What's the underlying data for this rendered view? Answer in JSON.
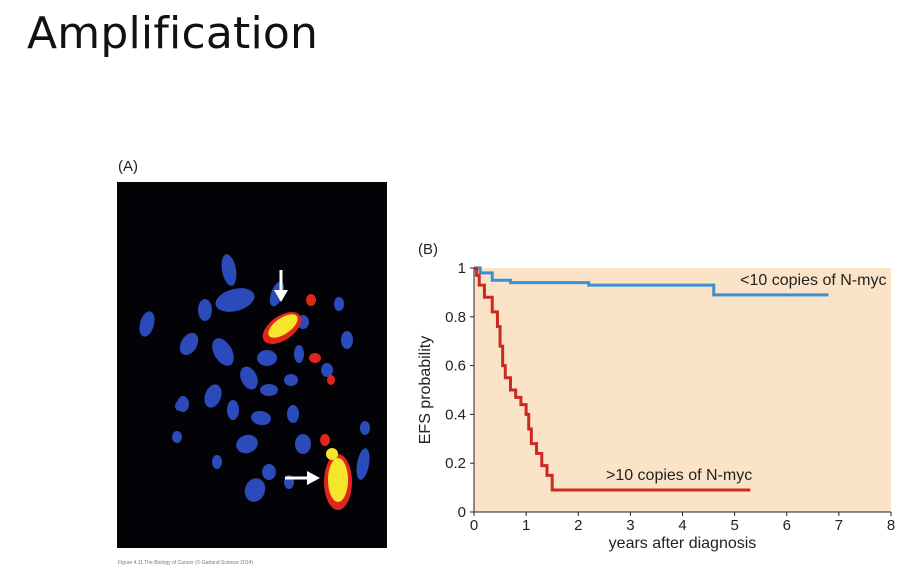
{
  "slide": {
    "title": "Amplification"
  },
  "figure": {
    "panel_a_label": "(A)",
    "panel_b_label": "(B)",
    "caption": "Figure 4.11 The Biology of Cancer (© Garland Science 2014)",
    "colors": {
      "micrograph_background": "#030307",
      "chromosome": "#2f4fc4",
      "amplified_signal": "#f5e62a",
      "signal_edge": "#e0261c",
      "arrow": "#ffffff"
    }
  },
  "chart_data": {
    "type": "line",
    "title": "",
    "xlabel": "years after diagnosis",
    "ylabel": "EFS probability",
    "xlim": [
      0,
      8
    ],
    "ylim": [
      0,
      1
    ],
    "x_ticks": [
      "0",
      "1",
      "2",
      "3",
      "4",
      "5",
      "6",
      "7",
      "8"
    ],
    "y_ticks": [
      "0",
      "0.2",
      "0.4",
      "0.6",
      "0.8",
      "1"
    ],
    "plot_background": "#fbe3c8",
    "step": true,
    "grid": false,
    "series": [
      {
        "name": "<10 copies of N-myc",
        "color": "#3a8fd6",
        "x": [
          0,
          0.12,
          0.35,
          0.7,
          2.2,
          4.6,
          6.8
        ],
        "y": [
          1.0,
          0.98,
          0.95,
          0.94,
          0.93,
          0.89,
          0.89
        ]
      },
      {
        "name": ">10 copies of N-myc",
        "color": "#cc2a1e",
        "x": [
          0,
          0.05,
          0.1,
          0.2,
          0.35,
          0.45,
          0.5,
          0.55,
          0.6,
          0.7,
          0.8,
          0.9,
          1.0,
          1.05,
          1.1,
          1.2,
          1.3,
          1.4,
          1.5,
          5.3
        ],
        "y": [
          1.0,
          0.97,
          0.93,
          0.88,
          0.82,
          0.76,
          0.68,
          0.6,
          0.55,
          0.5,
          0.47,
          0.44,
          0.4,
          0.34,
          0.28,
          0.24,
          0.19,
          0.15,
          0.09,
          0.09
        ]
      }
    ]
  }
}
